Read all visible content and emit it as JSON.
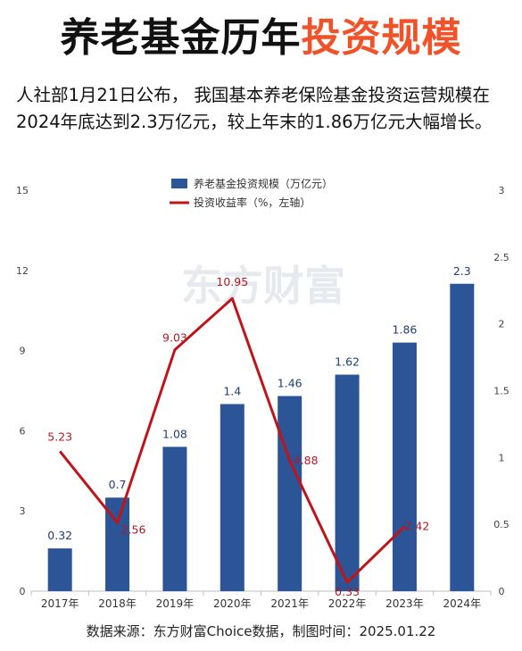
{
  "header": {
    "title_part1": "养老基金历年",
    "title_part2": "投资规模",
    "subtitle": "人社部1月21日公布， 我国基本养老保险基金投资运营规模在2024年底达到2.3万亿元，较上年末的1.86万亿元大幅增长。"
  },
  "watermark": "东方财富",
  "footer": {
    "source": "数据来源：东方财富Choice数据，制图时间：2025.01.22"
  },
  "colors": {
    "bar": "#2c5597",
    "line": "#c0141b",
    "title_accent": "#f0522a"
  },
  "chart_data": {
    "type": "bar",
    "categories": [
      "2017年",
      "2018年",
      "2019年",
      "2020年",
      "2021年",
      "2022年",
      "2023年",
      "2024年"
    ],
    "series": [
      {
        "name": "养老基金投资规模（万亿元）",
        "type": "bar",
        "axis": "right",
        "values": [
          0.32,
          0.7,
          1.08,
          1.4,
          1.46,
          1.62,
          1.86,
          2.3
        ],
        "labels": [
          "0.32",
          "0.7",
          "1.08",
          "1.4",
          "1.46",
          "1.62",
          "1.86",
          "2.3"
        ]
      },
      {
        "name": "投资收益率（%，左轴）",
        "type": "line",
        "axis": "left",
        "values": [
          5.23,
          2.56,
          9.03,
          10.95,
          4.88,
          0.33,
          2.42,
          null
        ],
        "labels": [
          "5.23",
          "2.56",
          "9.03",
          "10.95",
          "4.88",
          "0.33",
          "2.42",
          ""
        ]
      }
    ],
    "left_axis": {
      "ticks": [
        "0",
        "3",
        "6",
        "9",
        "12",
        "15"
      ],
      "min": 0,
      "max": 15
    },
    "right_axis": {
      "ticks": [
        "0",
        "0.5",
        "1",
        "1.5",
        "2",
        "2.5",
        "3"
      ],
      "min": 0,
      "max": 3
    },
    "legend_position": "top-center",
    "grid": false
  }
}
